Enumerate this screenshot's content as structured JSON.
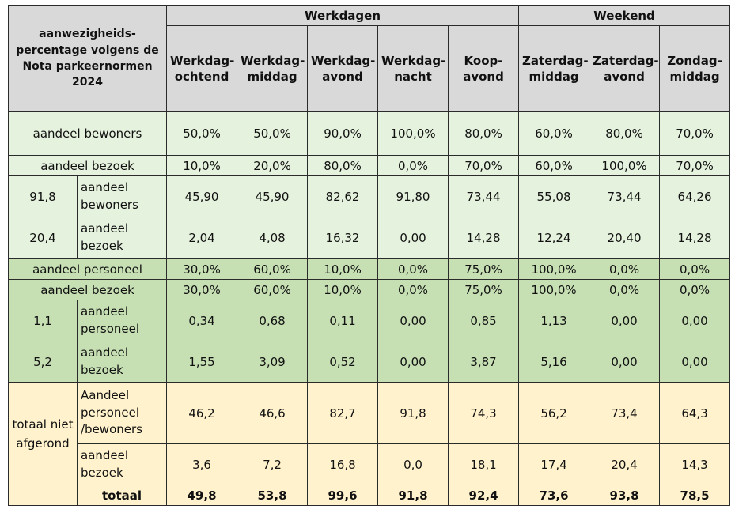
{
  "header": {
    "corner_title": "aanwezigheids-percentage volgens de Nota parkeernormen 2024",
    "group_weekdays": "Werkdagen",
    "group_weekend": "Weekend",
    "columns": [
      "Werkdag-ochtend",
      "Werkdag-middag",
      "Werkdag-avond",
      "Werkdag-nacht",
      "Koop-avond",
      "Zaterdag-middag",
      "Zaterdag-avond",
      "Zondag-middag"
    ]
  },
  "rows": [
    {
      "label": "aandeel bewoners",
      "values": [
        "50,0%",
        "50,0%",
        "90,0%",
        "100,0%",
        "80,0%",
        "60,0%",
        "80,0%",
        "70,0%"
      ]
    },
    {
      "label": "aandeel bezoek",
      "values": [
        "10,0%",
        "20,0%",
        "80,0%",
        "0,0%",
        "70,0%",
        "60,0%",
        "100,0%",
        "70,0%"
      ]
    },
    {
      "key": "91,8",
      "label": "aandeel bewoners",
      "values": [
        "45,90",
        "45,90",
        "82,62",
        "91,80",
        "73,44",
        "55,08",
        "73,44",
        "64,26"
      ]
    },
    {
      "key": "20,4",
      "label": "aandeel bezoek",
      "values": [
        "2,04",
        "4,08",
        "16,32",
        "0,00",
        "14,28",
        "12,24",
        "20,40",
        "14,28"
      ]
    },
    {
      "label": "aandeel personeel",
      "values": [
        "30,0%",
        "60,0%",
        "10,0%",
        "0,0%",
        "75,0%",
        "100,0%",
        "0,0%",
        "0,0%"
      ]
    },
    {
      "label": "aandeel bezoek",
      "values": [
        "30,0%",
        "60,0%",
        "10,0%",
        "0,0%",
        "75,0%",
        "100,0%",
        "0,0%",
        "0,0%"
      ]
    },
    {
      "key": "1,1",
      "label": "aandeel personeel",
      "values": [
        "0,34",
        "0,68",
        "0,11",
        "0,00",
        "0,85",
        "1,13",
        "0,00",
        "0,00"
      ]
    },
    {
      "key": "5,2",
      "label": "aandeel bezoek",
      "values": [
        "1,55",
        "3,09",
        "0,52",
        "0,00",
        "3,87",
        "5,16",
        "0,00",
        "0,00"
      ]
    }
  ],
  "totals_block": {
    "group_label": "totaal niet afgerond",
    "rows": [
      {
        "label": "Aandeel personeel /bewoners",
        "values": [
          "46,2",
          "46,6",
          "82,7",
          "91,8",
          "74,3",
          "56,2",
          "73,4",
          "64,3"
        ]
      },
      {
        "label": "aandeel bezoek",
        "values": [
          "3,6",
          "7,2",
          "16,8",
          "0,0",
          "18,1",
          "17,4",
          "20,4",
          "14,3"
        ]
      },
      {
        "label": "totaal",
        "values": [
          "49,8",
          "53,8",
          "99,6",
          "91,8",
          "92,4",
          "73,6",
          "93,8",
          "78,5"
        ]
      }
    ]
  },
  "colors": {
    "header": "#d9d9d9",
    "light_green": "#e5f2dd",
    "mid_green": "#c6e0b4",
    "yellow": "#fff2cc"
  }
}
